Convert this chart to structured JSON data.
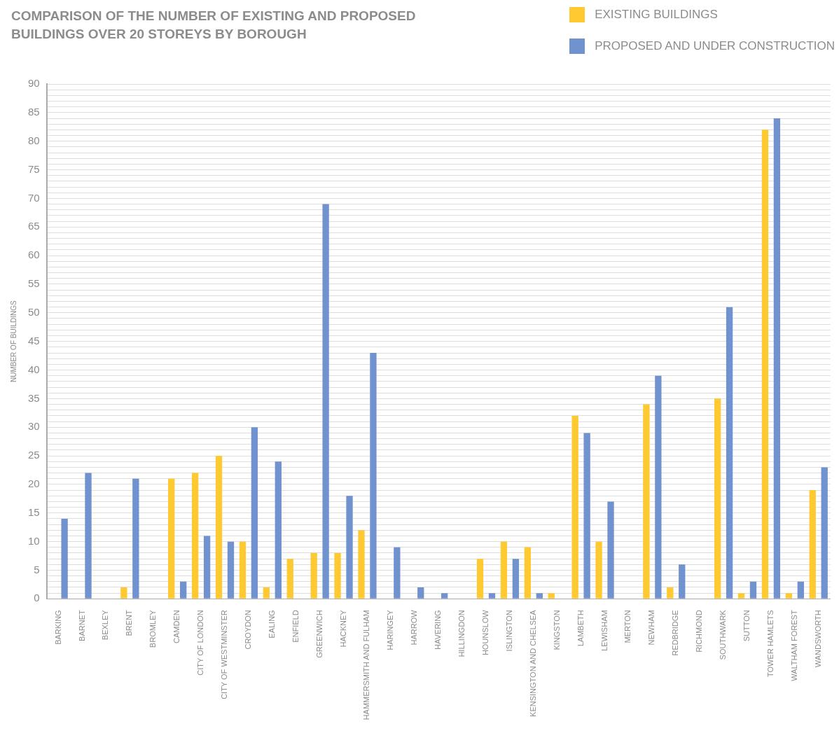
{
  "chart_data": {
    "type": "bar",
    "title": "COMPARISON OF THE NUMBER OF EXISTING AND PROPOSED BUILDINGS OVER 20 STOREYS BY BOROUGH",
    "ylabel": "NUMBER OF BUILDINGS",
    "categories": [
      "BARKING",
      "BARNET",
      "BEXLEY",
      "BRENT",
      "BROMLEY",
      "CAMDEN",
      "CITY OF LONDON",
      "CITY OF WESTMINSTER",
      "CROYDON",
      "EALING",
      "ENFIELD",
      "GREENWICH",
      "HACKNEY",
      "HAMMERSMITH AND FULHAM",
      "HARINGEY",
      "HARROW",
      "HAVERING",
      "HILLINGDON",
      "HOUNSLOW",
      "ISLINGTON",
      "KENSINGTON AND CHELSEA",
      "KINGSTON",
      "LAMBETH",
      "LEWISHAM",
      "MERTON",
      "NEWHAM",
      "REDBRIDGE",
      "RICHMOND",
      "SOUTHWARK",
      "SUTTON",
      "TOWER HAMLETS",
      "WALTHAM FOREST",
      "WANDSWORTH"
    ],
    "series": [
      {
        "name": "EXISTING BUILDINGS",
        "color": "#ffc931",
        "values": [
          0,
          0,
          0,
          2,
          0,
          21,
          22,
          25,
          10,
          2,
          7,
          8,
          8,
          12,
          0,
          0,
          0,
          0,
          7,
          10,
          9,
          1,
          32,
          10,
          0,
          34,
          2,
          0,
          35,
          1,
          82,
          1,
          19
        ]
      },
      {
        "name": "PROPOSED AND UNDER CONSTRUCTION",
        "color": "#7093cf",
        "values": [
          14,
          22,
          0,
          21,
          0,
          3,
          11,
          10,
          30,
          24,
          0,
          69,
          18,
          43,
          9,
          2,
          1,
          0,
          1,
          7,
          1,
          0,
          29,
          17,
          0,
          39,
          6,
          0,
          51,
          3,
          84,
          3,
          23
        ]
      }
    ],
    "ylim": [
      0,
      90
    ],
    "yticks": [
      0,
      {
        "value": 1,
        "label": null
      },
      {
        "value": 2,
        "label": null
      },
      {
        "value": 3,
        "label": null
      },
      {
        "value": 4,
        "label": null
      },
      5,
      {
        "value": 6,
        "label": null
      },
      {
        "value": 7,
        "label": null
      },
      {
        "value": 8,
        "label": null
      },
      {
        "value": 9,
        "label": null
      },
      10,
      {
        "value": 11,
        "label": null
      },
      {
        "value": 12,
        "label": null
      },
      {
        "value": 13,
        "label": null
      },
      {
        "value": 14,
        "label": null
      },
      15,
      {
        "value": 16,
        "label": null
      },
      {
        "value": 17,
        "label": null
      },
      {
        "value": 18,
        "label": null
      },
      {
        "value": 19,
        "label": null
      },
      20,
      {
        "value": 21,
        "label": null
      },
      {
        "value": 22,
        "label": null
      },
      {
        "value": 23,
        "label": null
      },
      {
        "value": 24,
        "label": null
      },
      25,
      {
        "value": 26,
        "label": null
      },
      {
        "value": 27,
        "label": null
      },
      {
        "value": 28,
        "label": null
      },
      {
        "value": 29,
        "label": null
      },
      30,
      {
        "value": 31,
        "label": null
      },
      {
        "value": 32,
        "label": null
      },
      {
        "value": 33,
        "label": null
      },
      {
        "value": 34,
        "label": null
      },
      35,
      {
        "value": 36,
        "label": null
      },
      {
        "value": 37,
        "label": null
      },
      {
        "value": 38,
        "label": null
      },
      {
        "value": 39,
        "label": null
      },
      40,
      {
        "value": 41,
        "label": null
      },
      {
        "value": 42,
        "label": null
      },
      {
        "value": 43,
        "label": null
      },
      {
        "value": 44,
        "label": null
      },
      45,
      {
        "value": 46,
        "label": null
      },
      {
        "value": 47,
        "label": null
      },
      {
        "value": 48,
        "label": null
      },
      {
        "value": 49,
        "label": null
      },
      50,
      {
        "value": 51,
        "label": null
      },
      {
        "value": 52,
        "label": null
      },
      {
        "value": 53,
        "label": null
      },
      {
        "value": 54,
        "label": null
      },
      55,
      {
        "value": 56,
        "label": null
      },
      {
        "value": 57,
        "label": null
      },
      {
        "value": 58,
        "label": null
      },
      {
        "value": 59,
        "label": null
      },
      60,
      {
        "value": 61,
        "label": null
      },
      {
        "value": 62,
        "label": null
      },
      {
        "value": 63,
        "label": null
      },
      {
        "value": 64,
        "label": null
      },
      65,
      {
        "value": 66,
        "label": null
      },
      {
        "value": 67,
        "label": null
      },
      {
        "value": 68,
        "label": null
      },
      {
        "value": 69,
        "label": null
      },
      70,
      {
        "value": 71,
        "label": null
      },
      {
        "value": 72,
        "label": null
      },
      {
        "value": 73,
        "label": null
      },
      {
        "value": 74,
        "label": null
      },
      75,
      {
        "value": 76,
        "label": null
      },
      {
        "value": 77,
        "label": null
      },
      {
        "value": 78,
        "label": null
      },
      {
        "value": 79,
        "label": null
      },
      80,
      {
        "value": 81,
        "label": null
      },
      {
        "value": 82,
        "label": null
      },
      {
        "value": 83,
        "label": null
      },
      {
        "value": 84,
        "label": null
      },
      85,
      {
        "value": 86,
        "label": null
      },
      {
        "value": 87,
        "label": null
      },
      {
        "value": 88,
        "label": null
      },
      {
        "value": 89,
        "label": null
      },
      90
    ],
    "grid": "y",
    "legend": "top right"
  }
}
